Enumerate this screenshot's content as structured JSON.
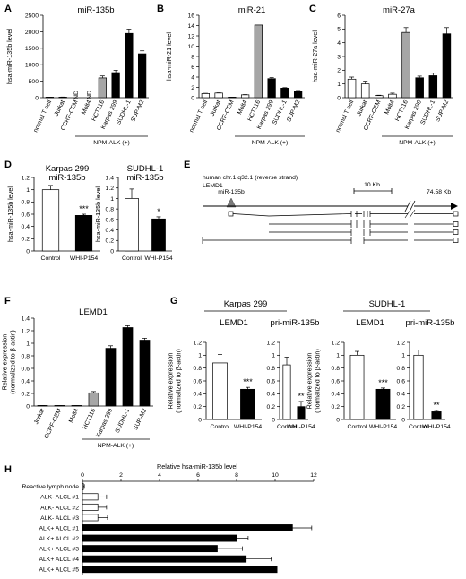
{
  "panels": {
    "A": "A",
    "B": "B",
    "C": "C",
    "D": "D",
    "E": "E",
    "F": "F",
    "G": "G",
    "H": "H"
  },
  "bracket_labels": {
    "npm_alk": "NPM-ALK (+)",
    "karpas": "Karpas 299",
    "sudhl": "SUDHL-1"
  },
  "gene_diagram": {
    "title_line1": "human chr.1 q32.1 (reverse strand)",
    "title_line2": "LEMD1",
    "mir_label": "miR-135b",
    "scale_label": "10 Kb",
    "end_label": "74.58 Kb"
  },
  "chart_data": [
    {
      "panel": "A",
      "type": "bar",
      "title": "miR-135b",
      "ylabel": "hsa-miR-135b level",
      "xlabel": "",
      "categories": [
        "normal T cell",
        "Jurkat",
        "CCRF-CEM",
        "Molt4",
        "HCT116",
        "Karpas 299",
        "SUDHL-1",
        "SUP-M2"
      ],
      "values": [
        10,
        15,
        null,
        null,
        600,
        760,
        1950,
        1330
      ],
      "errors": [
        3,
        5,
        0,
        0,
        60,
        70,
        130,
        90
      ],
      "bar_annotations": [
        "",
        "",
        "ND",
        "ND",
        "",
        "",
        "",
        ""
      ],
      "fills": [
        "white",
        "white",
        "white",
        "white",
        "gray",
        "black",
        "black",
        "black"
      ],
      "ylim": [
        0,
        2500
      ],
      "yticks": [
        "0",
        "500",
        "1000",
        "1500",
        "2000",
        "2500"
      ]
    },
    {
      "panel": "B",
      "type": "bar",
      "title": "miR-21",
      "ylabel": "hsa-miR-21 level",
      "xlabel": "",
      "categories": [
        "normal T cell",
        "Jurkat",
        "CCRF-CEM",
        "Molt4",
        "HCT116",
        "Karpas 299",
        "SUDHL-1",
        "SUP-M2"
      ],
      "values": [
        0.8,
        0.9,
        0.05,
        0.55,
        14.1,
        3.7,
        1.85,
        1.3
      ],
      "errors": [
        0.05,
        0.05,
        0.02,
        0.05,
        0,
        0.2,
        0.1,
        0.1
      ],
      "fills": [
        "white",
        "white",
        "white",
        "white",
        "gray",
        "black",
        "black",
        "black"
      ],
      "ylim": [
        0,
        16
      ],
      "yticks": [
        "0",
        "2",
        "4",
        "6",
        "8",
        "10",
        "12",
        "14",
        "16"
      ]
    },
    {
      "panel": "C",
      "type": "bar",
      "title": "miR-27a",
      "ylabel": "hsa-miR-27a level",
      "xlabel": "",
      "categories": [
        "normal T cell",
        "Jurkat",
        "CCRF-CEM",
        "Molt4",
        "HCT116",
        "Karpas 299",
        "SUDHL-1",
        "SUP-M2"
      ],
      "values": [
        1.35,
        1.0,
        0.15,
        0.25,
        4.75,
        1.45,
        1.6,
        4.65
      ],
      "errors": [
        0.15,
        0.2,
        0.03,
        0.08,
        0.35,
        0.12,
        0.18,
        0.45
      ],
      "fills": [
        "white",
        "white",
        "white",
        "white",
        "gray",
        "black",
        "black",
        "black"
      ],
      "ylim": [
        0,
        6
      ],
      "yticks": [
        "0",
        "1",
        "2",
        "3",
        "4",
        "5",
        "6"
      ]
    },
    {
      "panel": "D1",
      "type": "bar",
      "title": "Karpas 299\nmiR-135b",
      "ylabel": "hsa-miR-135b level",
      "xlabel": "",
      "categories": [
        "Control",
        "WHI-P154"
      ],
      "values": [
        1.0,
        0.58
      ],
      "errors": [
        0.07,
        0.02
      ],
      "significance": [
        "",
        "***"
      ],
      "fills": [
        "white",
        "black"
      ],
      "ylim": [
        0,
        1.2
      ],
      "yticks": [
        "0",
        "0.2",
        "0.4",
        "0.6",
        "0.8",
        "1",
        "1.2"
      ]
    },
    {
      "panel": "D2",
      "type": "bar",
      "title": "SUDHL-1\nmiR-135b",
      "ylabel": "hsa-miR-135b level",
      "xlabel": "",
      "categories": [
        "Control",
        "WHI-P154"
      ],
      "values": [
        1.0,
        0.61
      ],
      "errors": [
        0.18,
        0.04
      ],
      "significance": [
        "",
        "*"
      ],
      "fills": [
        "white",
        "black"
      ],
      "ylim": [
        0,
        1.4
      ],
      "yticks": [
        "0",
        "0.2",
        "0.4",
        "0.6",
        "0.8",
        "1",
        "1.2",
        "1.4"
      ]
    },
    {
      "panel": "F",
      "type": "bar",
      "title": "LEMD1",
      "ylabel": "Relative expression\n(normalized to β-actin)",
      "xlabel": "",
      "categories": [
        "Jurkat",
        "CCRF-CEM",
        "Molt4",
        "HCT116",
        "Karpas 299",
        "SUDHL-1",
        "SUP-M2"
      ],
      "values": [
        0.005,
        0.003,
        0.003,
        0.21,
        0.92,
        1.25,
        1.05
      ],
      "errors": [
        0.002,
        0.002,
        0.002,
        0.02,
        0.04,
        0.03,
        0.03
      ],
      "fills": [
        "white",
        "white",
        "white",
        "gray",
        "black",
        "black",
        "black"
      ],
      "ylim": [
        0,
        1.4
      ],
      "yticks": [
        "0",
        "0.2",
        "0.4",
        "0.6",
        "0.8",
        "1",
        "1.2",
        "1.4"
      ]
    },
    {
      "panel": "G1",
      "type": "bar",
      "title": "LEMD1",
      "ylabel": "Relative expression\n(normalized to β-actin)",
      "xlabel": "",
      "categories": [
        "Control",
        "WHI-P154"
      ],
      "values": [
        0.88,
        0.47
      ],
      "errors": [
        0.13,
        0.03
      ],
      "significance": [
        "",
        "***"
      ],
      "fills": [
        "white",
        "black"
      ],
      "ylim": [
        0,
        1.2
      ],
      "yticks": [
        "0",
        "0.2",
        "0.4",
        "0.6",
        "0.8",
        "1",
        "1.2"
      ]
    },
    {
      "panel": "G2",
      "type": "bar",
      "title": "pri-miR-135b",
      "ylabel": "",
      "xlabel": "",
      "categories": [
        "Control",
        "WHI-P154"
      ],
      "values": [
        0.85,
        0.2
      ],
      "errors": [
        0.12,
        0.08
      ],
      "significance": [
        "",
        "**"
      ],
      "fills": [
        "white",
        "black"
      ],
      "ylim": [
        0,
        1.2
      ],
      "yticks": [
        "0",
        "0.2",
        "0.4",
        "0.6",
        "0.8",
        "1",
        "1.2"
      ]
    },
    {
      "panel": "G3",
      "type": "bar",
      "title": "LEMD1",
      "ylabel": "Relative expression\n(normalized to β-actin)",
      "xlabel": "",
      "categories": [
        "Control",
        "WHI-P154"
      ],
      "values": [
        1.0,
        0.47
      ],
      "errors": [
        0.06,
        0.02
      ],
      "significance": [
        "",
        "***"
      ],
      "fills": [
        "white",
        "black"
      ],
      "ylim": [
        0,
        1.2
      ],
      "yticks": [
        "0",
        "0.2",
        "0.4",
        "0.6",
        "0.8",
        "1",
        "1.2"
      ]
    },
    {
      "panel": "G4",
      "type": "bar",
      "title": "pri-miR-135b",
      "ylabel": "",
      "xlabel": "",
      "categories": [
        "Control",
        "WHI-P154"
      ],
      "values": [
        1.0,
        0.12
      ],
      "errors": [
        0.08,
        0.02
      ],
      "significance": [
        "",
        "**"
      ],
      "fills": [
        "white",
        "black"
      ],
      "ylim": [
        0,
        1.2
      ],
      "yticks": [
        "0",
        "0.2",
        "0.4",
        "0.6",
        "0.8",
        "1",
        "1.2"
      ]
    },
    {
      "panel": "H",
      "type": "bar",
      "orientation": "horizontal",
      "title": "",
      "xlabel": "Relative hsa-miR-135b  level",
      "ylabel": "",
      "categories": [
        "Reactive lymph node",
        "ALK- ALCL #1",
        "ALK- ALCL #2",
        "ALK- ALCL #3",
        "ALK+ ALCL #1",
        "ALK+ ALCL #2",
        "ALK+ ALCL #3",
        "ALK+ ALCL #4",
        "ALK+ ALCL #5"
      ],
      "values": [
        0.05,
        0.8,
        0.8,
        0.8,
        10.9,
        8.0,
        7.0,
        8.5,
        10.1
      ],
      "errors": [
        0.05,
        0.45,
        0.45,
        0.5,
        1.0,
        0.6,
        1.3,
        1.3,
        0
      ],
      "fills": [
        "white",
        "white",
        "white",
        "white",
        "black",
        "black",
        "black",
        "black",
        "black"
      ],
      "xlim": [
        0,
        12
      ],
      "xticks": [
        "0",
        "2",
        "4",
        "6",
        "8",
        "10",
        "12"
      ]
    }
  ]
}
